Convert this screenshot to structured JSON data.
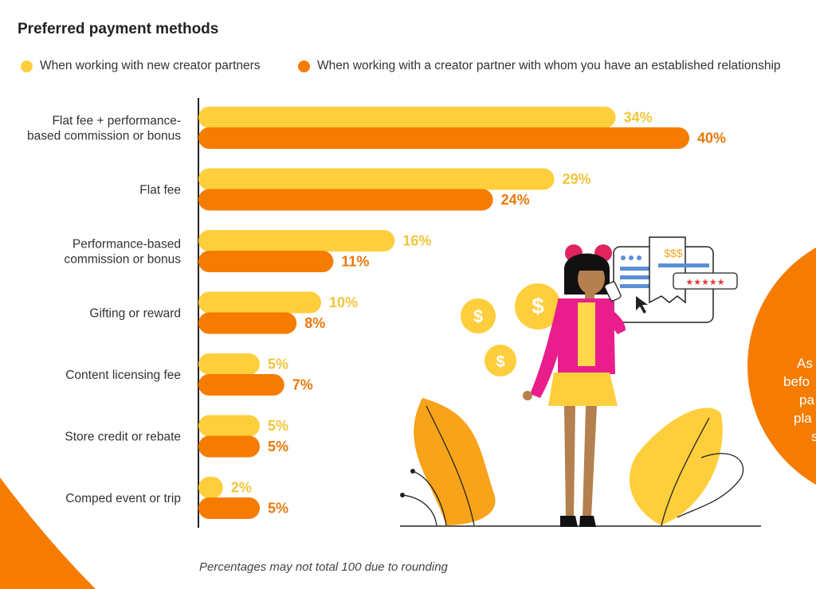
{
  "chart_data": {
    "type": "bar",
    "orientation": "horizontal",
    "title": "Preferred payment methods",
    "categories": [
      "Flat fee + performance-based commission or bonus",
      "Flat fee",
      "Performance-based commission or bonus",
      "Gifting or reward",
      "Content licensing fee",
      "Store credit or rebate",
      "Comped event or trip"
    ],
    "category_lines": [
      [
        "Flat fee + performance-",
        "based commission or bonus"
      ],
      [
        "Flat fee"
      ],
      [
        "Performance-based",
        "commission or bonus"
      ],
      [
        "Gifting or reward"
      ],
      [
        "Content licensing fee"
      ],
      [
        "Store credit or rebate"
      ],
      [
        "Comped event or trip"
      ]
    ],
    "series": [
      {
        "name": "When working with new creator partners",
        "color": "#FFCE3D",
        "label_color": "#F2C53A",
        "values": [
          34,
          29,
          16,
          10,
          5,
          5,
          2
        ]
      },
      {
        "name": "When working with a creator partner with whom you have an established relationship",
        "color": "#F57C00",
        "label_color": "#E8780C",
        "values": [
          40,
          24,
          11,
          8,
          7,
          5,
          5
        ]
      }
    ],
    "value_suffix": "%",
    "xlim": [
      0,
      40
    ],
    "legend": "top",
    "footnote": "Percentages may not total 100 due to rounding"
  },
  "side_panel_text": [
    "As",
    "befo",
    "pa",
    "pla",
    "s"
  ],
  "illustration": {
    "price_tag_text": "$$$",
    "coin_symbol": "$"
  }
}
